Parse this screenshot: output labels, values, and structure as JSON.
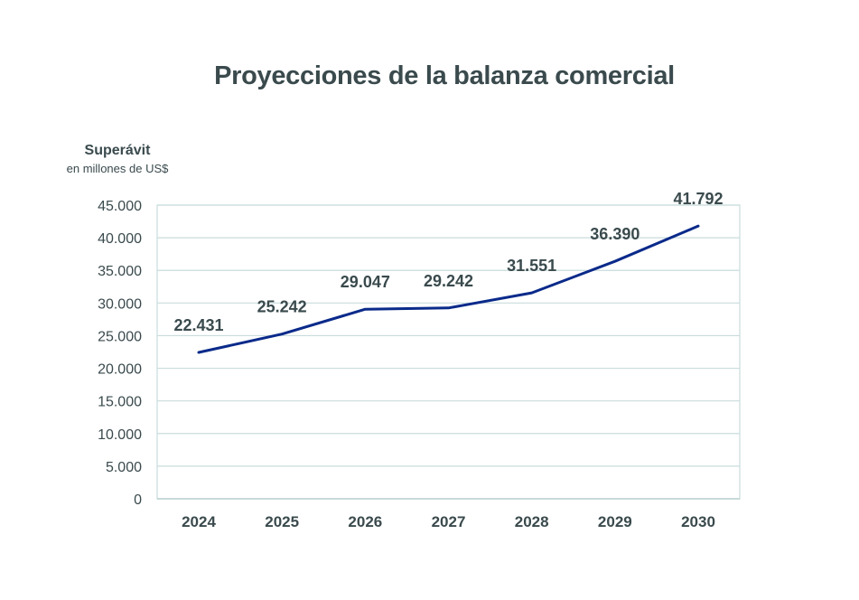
{
  "chart_data": {
    "type": "line",
    "title": "Proyecciones de la balanza comercial",
    "ylabel": "Superávit",
    "ylabel_sub": "en millones de US$",
    "xlabel": "",
    "categories": [
      "2024",
      "2025",
      "2026",
      "2027",
      "2028",
      "2029",
      "2030"
    ],
    "values": [
      22431,
      25242,
      29047,
      29242,
      31551,
      36390,
      41792
    ],
    "data_labels": [
      "22.431",
      "25.242",
      "29.047",
      "29.242",
      "31.551",
      "36.390",
      "41.792"
    ],
    "ylim": [
      0,
      45000
    ],
    "yticks": [
      0,
      5000,
      10000,
      15000,
      20000,
      25000,
      30000,
      35000,
      40000,
      45000
    ],
    "ytick_labels": [
      "0",
      "5.000",
      "10.000",
      "15.000",
      "20.000",
      "25.000",
      "30.000",
      "35.000",
      "40.000",
      "45.000"
    ],
    "grid": true,
    "line_color": "#0a2a8a",
    "grid_color": "#c9dcdc",
    "text_color": "#3a4a4d"
  }
}
